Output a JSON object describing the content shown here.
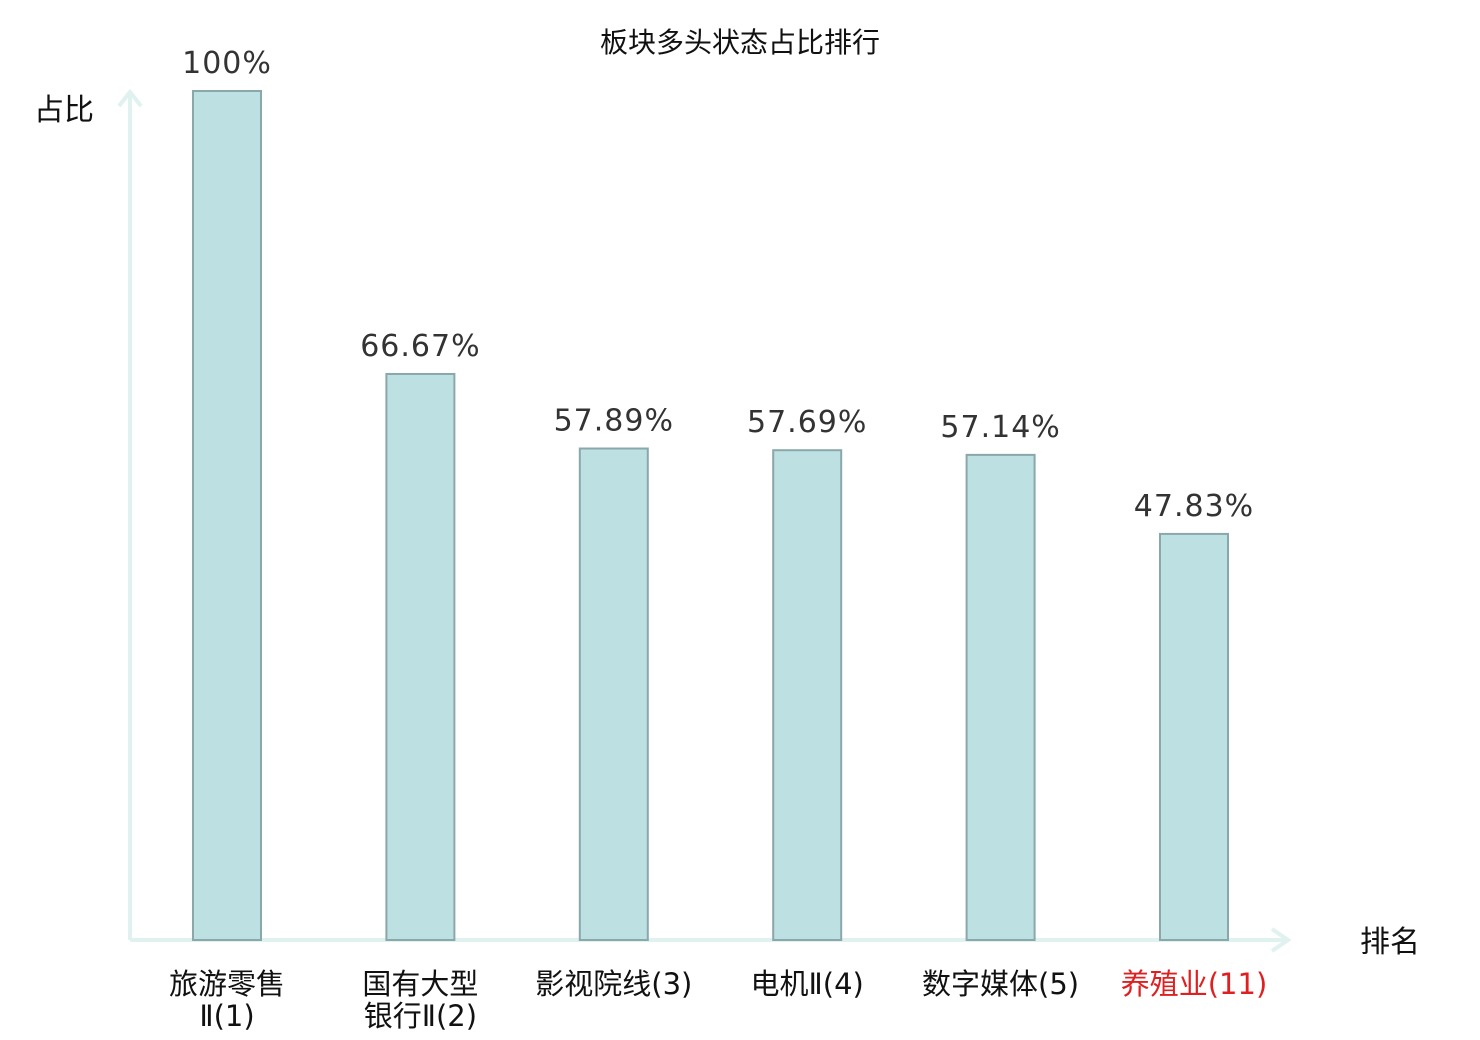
{
  "chart_data": {
    "type": "bar",
    "title": "板块多头状态占比排行",
    "ylabel": "占比",
    "xlabel": "排名",
    "ylim": [
      0,
      100
    ],
    "grid": false,
    "categories": [
      {
        "lines": [
          "旅游零售",
          "Ⅱ(1)"
        ],
        "highlight": false
      },
      {
        "lines": [
          "国有大型",
          "银行Ⅱ(2)"
        ],
        "highlight": false
      },
      {
        "lines": [
          "影视院线(3)"
        ],
        "highlight": false
      },
      {
        "lines": [
          "电机Ⅱ(4)"
        ],
        "highlight": false
      },
      {
        "lines": [
          "数字媒体(5)"
        ],
        "highlight": false
      },
      {
        "lines": [
          "养殖业(11)"
        ],
        "highlight": true
      }
    ],
    "values": [
      100,
      66.67,
      57.89,
      57.69,
      57.14,
      47.83
    ],
    "value_labels": [
      "100%",
      "66.67%",
      "57.89%",
      "57.69%",
      "57.14%",
      "47.83%"
    ]
  }
}
